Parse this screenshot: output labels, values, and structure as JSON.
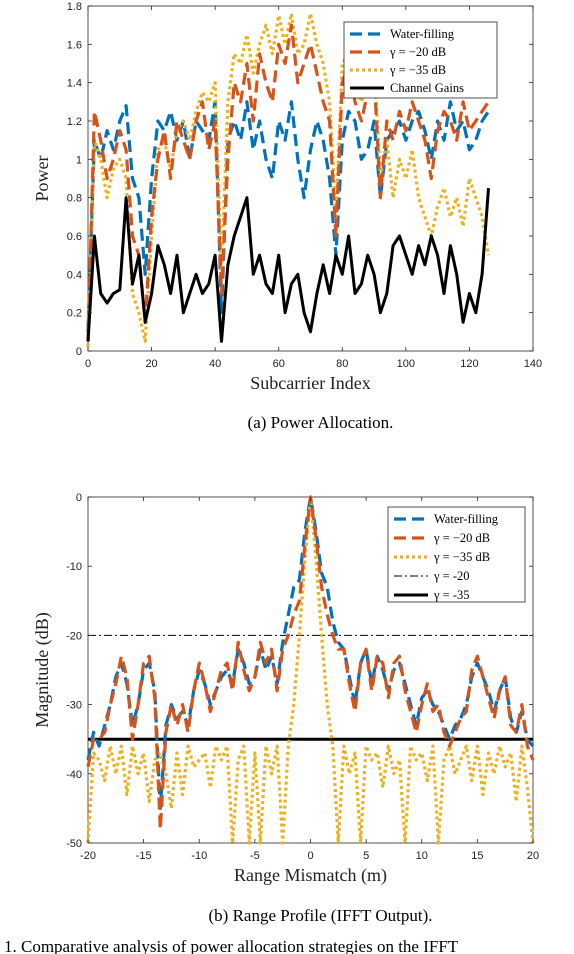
{
  "figure_caption_fragment": "1. Comparative analysis of power allocation strategies on the IFFT",
  "chart_data": [
    {
      "type": "line",
      "caption": "(a) Power Allocation.",
      "xlabel": "Subcarrier Index",
      "ylabel": "Power",
      "xlim": [
        0,
        140
      ],
      "ylim": [
        0,
        1.8
      ],
      "xticks": [
        "0",
        "20",
        "40",
        "60",
        "80",
        "100",
        "120",
        "140"
      ],
      "yticks": [
        "0",
        "0.2",
        "0.4",
        "0.6",
        "0.8",
        "1",
        "1.2",
        "1.4",
        "1.6",
        "1.8"
      ],
      "grid": false,
      "legend_position": "top-right",
      "legend": [
        "Water-filling",
        "γ = −20 dB",
        "γ = −35 dB",
        "Channel Gains"
      ],
      "x": [
        0,
        2,
        4,
        6,
        8,
        10,
        12,
        14,
        16,
        18,
        20,
        22,
        24,
        26,
        28,
        30,
        32,
        34,
        36,
        38,
        40,
        42,
        44,
        46,
        48,
        50,
        52,
        54,
        56,
        58,
        60,
        62,
        64,
        66,
        68,
        70,
        72,
        74,
        76,
        78,
        80,
        82,
        84,
        86,
        88,
        90,
        92,
        94,
        96,
        98,
        100,
        102,
        104,
        106,
        108,
        110,
        112,
        114,
        116,
        118,
        120,
        122,
        124,
        126
      ],
      "series": [
        {
          "name": "Water-filling",
          "color": "#0072BD",
          "style": "dashed",
          "values": [
            0.1,
            1.1,
            1.0,
            1.15,
            1.05,
            1.2,
            1.28,
            0.9,
            0.8,
            0.4,
            0.9,
            1.2,
            1.15,
            1.25,
            1.1,
            1.2,
            1.0,
            1.2,
            1.15,
            1.1,
            1.3,
            0.2,
            1.1,
            1.2,
            1.1,
            1.3,
            1.05,
            1.2,
            1.0,
            0.9,
            1.2,
            1.1,
            1.3,
            1.0,
            0.8,
            1.05,
            1.2,
            1.1,
            0.9,
            0.5,
            1.1,
            1.25,
            1.2,
            1.0,
            1.05,
            1.2,
            0.8,
            1.1,
            1.15,
            1.2,
            1.1,
            1.2,
            1.25,
            1.15,
            1.0,
            1.2,
            1.1,
            1.3,
            1.15,
            1.2,
            1.05,
            1.1,
            1.2,
            1.25
          ]
        },
        {
          "name": "γ = −20 dB",
          "color": "#D95319",
          "style": "dashed",
          "values": [
            0.05,
            1.25,
            1.1,
            0.9,
            1.0,
            1.15,
            1.05,
            0.6,
            0.5,
            0.15,
            0.7,
            1.0,
            1.15,
            0.9,
            1.2,
            1.1,
            1.0,
            1.2,
            1.3,
            1.05,
            1.2,
            0.3,
            1.0,
            1.4,
            1.3,
            1.5,
            1.2,
            1.55,
            1.4,
            1.3,
            1.6,
            1.5,
            1.7,
            1.4,
            1.5,
            1.6,
            1.45,
            1.3,
            1.2,
            0.6,
            1.4,
            1.5,
            1.3,
            1.2,
            1.35,
            1.45,
            0.8,
            1.2,
            1.1,
            1.25,
            1.15,
            1.3,
            1.2,
            1.1,
            0.9,
            1.15,
            1.25,
            1.2,
            1.1,
            1.3,
            1.15,
            1.2,
            1.25,
            1.3
          ]
        },
        {
          "name": "γ = −35 dB",
          "color": "#EDB120",
          "style": "dotted",
          "values": [
            0.02,
            1.1,
            1.0,
            0.8,
            0.95,
            1.0,
            0.9,
            0.3,
            0.2,
            0.05,
            0.6,
            1.05,
            1.1,
            0.95,
            1.15,
            1.2,
            1.1,
            1.25,
            1.35,
            1.3,
            1.4,
            0.4,
            1.3,
            1.55,
            1.5,
            1.65,
            1.45,
            1.6,
            1.7,
            1.55,
            1.75,
            1.6,
            1.76,
            1.55,
            1.6,
            1.76,
            1.6,
            1.5,
            1.3,
            0.7,
            1.5,
            1.55,
            1.4,
            1.3,
            1.4,
            1.5,
            0.9,
            1.1,
            0.8,
            1.0,
            0.9,
            1.05,
            0.8,
            0.7,
            0.6,
            0.75,
            0.85,
            0.7,
            0.8,
            0.65,
            0.9,
            0.8,
            0.7,
            0.5
          ]
        },
        {
          "name": "Channel Gains",
          "color": "#000000",
          "style": "solid",
          "values": [
            0.05,
            0.6,
            0.3,
            0.25,
            0.3,
            0.32,
            0.8,
            0.35,
            0.5,
            0.15,
            0.3,
            0.55,
            0.45,
            0.3,
            0.5,
            0.2,
            0.3,
            0.4,
            0.3,
            0.35,
            0.5,
            0.05,
            0.45,
            0.6,
            0.7,
            0.8,
            0.4,
            0.5,
            0.35,
            0.3,
            0.5,
            0.2,
            0.35,
            0.4,
            0.2,
            0.1,
            0.3,
            0.45,
            0.3,
            0.5,
            0.4,
            0.6,
            0.3,
            0.35,
            0.5,
            0.4,
            0.2,
            0.3,
            0.55,
            0.6,
            0.5,
            0.4,
            0.55,
            0.45,
            0.6,
            0.5,
            0.3,
            0.55,
            0.4,
            0.15,
            0.3,
            0.2,
            0.4,
            0.85
          ]
        }
      ]
    },
    {
      "type": "line",
      "caption": "(b) Range Profile (IFFT Output).",
      "xlabel": "Range Mismatch (m)",
      "ylabel": "Magnitude (dB)",
      "xlim": [
        -20,
        20
      ],
      "ylim": [
        -50,
        0
      ],
      "xticks": [
        "-20",
        "-15",
        "-10",
        "-5",
        "0",
        "5",
        "10",
        "15",
        "20"
      ],
      "yticks": [
        "-50",
        "-40",
        "-30",
        "-20",
        "-10",
        "0"
      ],
      "grid": false,
      "legend_position": "top-right",
      "legend": [
        "Water-filling",
        "γ = −20 dB",
        "γ = −35 dB",
        "γ = -20",
        "γ = -35"
      ],
      "x": [
        -20,
        -19.5,
        -19,
        -18.5,
        -18,
        -17.5,
        -17,
        -16.5,
        -16,
        -15.5,
        -15,
        -14.5,
        -14,
        -13.5,
        -13,
        -12.5,
        -12,
        -11.5,
        -11,
        -10.5,
        -10,
        -9.5,
        -9,
        -8.5,
        -8,
        -7.5,
        -7,
        -6.5,
        -6,
        -5.5,
        -5,
        -4.5,
        -4,
        -3.5,
        -3,
        -2.5,
        -2,
        -1.5,
        -1,
        -0.5,
        0,
        0.5,
        1,
        1.5,
        2,
        2.5,
        3,
        3.5,
        4,
        4.5,
        5,
        5.5,
        6,
        6.5,
        7,
        7.5,
        8,
        8.5,
        9,
        9.5,
        10,
        10.5,
        11,
        11.5,
        12,
        12.5,
        13,
        13.5,
        14,
        14.5,
        15,
        15.5,
        16,
        16.5,
        17,
        17.5,
        18,
        18.5,
        19,
        19.5,
        20
      ],
      "series": [
        {
          "name": "Water-filling",
          "color": "#0072BD",
          "style": "dashed",
          "values": [
            -38,
            -34,
            -36,
            -33,
            -30,
            -26,
            -24,
            -27,
            -33,
            -30,
            -25,
            -24,
            -28,
            -45,
            -33,
            -30,
            -32,
            -31,
            -33,
            -28,
            -25,
            -27,
            -30,
            -28,
            -26,
            -25,
            -27,
            -22,
            -24,
            -27,
            -26,
            -22,
            -25,
            -23,
            -27,
            -21,
            -17,
            -13,
            -12,
            -5,
            0,
            -5,
            -11,
            -13,
            -18,
            -21,
            -22,
            -26,
            -30,
            -24,
            -22,
            -27,
            -23,
            -25,
            -28,
            -25,
            -24,
            -27,
            -30,
            -33,
            -29,
            -28,
            -30,
            -31,
            -33,
            -35,
            -33,
            -32,
            -30,
            -26,
            -24,
            -26,
            -28,
            -31,
            -28,
            -26,
            -32,
            -34,
            -31,
            -35,
            -36
          ]
        },
        {
          "name": "γ = −20 dB",
          "color": "#D95319",
          "style": "dashed",
          "values": [
            -39,
            -35,
            -35,
            -34,
            -30,
            -27,
            -23,
            -26,
            -35,
            -30,
            -24,
            -23,
            -29,
            -48,
            -34,
            -30,
            -33,
            -30,
            -34,
            -28,
            -24,
            -27,
            -31,
            -28,
            -25,
            -24,
            -28,
            -21,
            -25,
            -28,
            -26,
            -21,
            -24,
            -22,
            -28,
            -22,
            -20,
            -17,
            -15,
            -7,
            0,
            -6,
            -13,
            -17,
            -20,
            -22,
            -22,
            -27,
            -31,
            -24,
            -22,
            -28,
            -23,
            -24,
            -29,
            -24,
            -23,
            -28,
            -31,
            -34,
            -30,
            -27,
            -31,
            -30,
            -34,
            -36,
            -34,
            -32,
            -31,
            -25,
            -23,
            -26,
            -29,
            -32,
            -28,
            -26,
            -33,
            -34,
            -30,
            -36,
            -38
          ]
        },
        {
          "name": "γ = −35 dB",
          "color": "#EDB120",
          "style": "dotted",
          "values": [
            -50,
            -37,
            -38,
            -41,
            -36,
            -40,
            -36,
            -43,
            -36,
            -40,
            -37,
            -44,
            -38,
            -37,
            -40,
            -45,
            -37,
            -43,
            -36,
            -39,
            -38,
            -37,
            -42,
            -36,
            -38,
            -36,
            -50,
            -38,
            -36,
            -50,
            -37,
            -50,
            -36,
            -40,
            -36,
            -50,
            -36,
            -30,
            -20,
            -9,
            0,
            -9,
            -20,
            -30,
            -36,
            -50,
            -36,
            -40,
            -37,
            -50,
            -36,
            -38,
            -37,
            -42,
            -36,
            -40,
            -38,
            -50,
            -36,
            -38,
            -37,
            -41,
            -36,
            -50,
            -38,
            -36,
            -40,
            -38,
            -36,
            -41,
            -36,
            -43,
            -37,
            -40,
            -36,
            -39,
            -37,
            -44,
            -36,
            -42,
            -50
          ]
        }
      ],
      "reference_lines": [
        {
          "name": "γ = -20",
          "y": -20,
          "style": "dashdot",
          "color": "#000000"
        },
        {
          "name": "γ = -35",
          "y": -35,
          "style": "solid",
          "color": "#000000"
        }
      ]
    }
  ]
}
